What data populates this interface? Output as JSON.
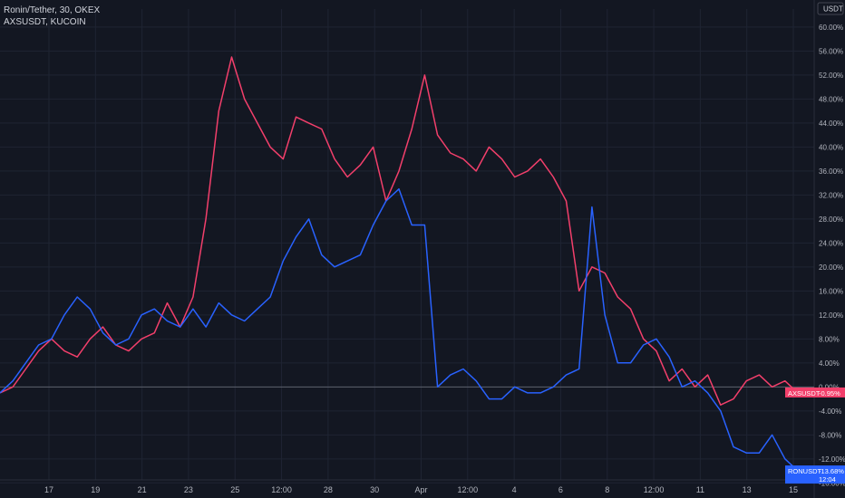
{
  "legend": {
    "main_symbol": "Ronin/Tether, 30, OKEX",
    "compare_symbol": "AXSUSDT, KUCOIN"
  },
  "axis": {
    "currency": "USDT"
  },
  "colors": {
    "background": "#131722",
    "grid": "#1f2433",
    "axis_text": "#b2b5be",
    "ronin": "#2962ff",
    "axs": "#f23f6b",
    "zero_line": "#787b86"
  },
  "chart_data": {
    "type": "line",
    "y_unit": "percent change",
    "ylim": [
      -15.5,
      63
    ],
    "y_ticks": [
      "60.00%",
      "56.00%",
      "52.00%",
      "48.00%",
      "44.00%",
      "40.00%",
      "36.00%",
      "32.00%",
      "28.00%",
      "24.00%",
      "20.00%",
      "16.00%",
      "12.00%",
      "8.00%",
      "4.00%",
      "0.00%",
      "-4.00%",
      "-8.00%",
      "-12.00%",
      "-16.00%"
    ],
    "x_ticks": [
      "17",
      "19",
      "21",
      "23",
      "25",
      "12:00",
      "28",
      "30",
      "Apr",
      "12:00",
      "4",
      "6",
      "8",
      "12:00",
      "11",
      "13",
      "15"
    ],
    "grid": true,
    "series": [
      {
        "name": "RONUSDT",
        "role": "main",
        "label_value": "-13.68%",
        "label_extra": "12:04",
        "x": [
          0,
          0.5,
          1,
          1.5,
          2,
          2.5,
          3,
          3.5,
          4,
          4.5,
          5,
          5.5,
          6,
          6.5,
          7,
          7.5,
          8,
          8.5,
          9,
          9.5,
          10,
          10.5,
          11,
          11.5,
          12,
          12.5,
          13,
          13.5,
          14,
          14.5,
          15,
          15.5,
          16,
          16.5,
          17,
          17.5,
          18,
          18.5,
          19,
          19.5,
          20,
          20.5,
          21,
          21.5,
          22,
          22.5,
          23,
          23.5,
          24,
          24.5,
          25,
          25.5,
          26,
          26.5,
          27,
          27.5,
          28,
          28.5,
          29,
          29.5,
          30,
          30.5,
          31
        ],
        "values": [
          -1,
          1,
          4,
          7,
          8,
          12,
          15,
          13,
          9,
          7,
          8,
          12,
          13,
          11,
          10,
          13,
          10,
          14,
          12,
          11,
          13,
          15,
          21,
          25,
          28,
          22,
          20,
          21,
          22,
          27,
          31,
          33,
          27,
          27,
          0,
          2,
          3,
          1,
          -2,
          -2,
          0,
          -1,
          -1,
          0,
          2,
          3,
          30,
          12,
          4,
          4,
          7,
          8,
          5,
          0,
          1,
          -1,
          -4,
          -10,
          -11,
          -11,
          -8,
          -12,
          -14
        ]
      },
      {
        "name": "AXSUSDT",
        "role": "compare",
        "label_value": "-0.95%",
        "x": [
          0,
          0.5,
          1,
          1.5,
          2,
          2.5,
          3,
          3.5,
          4,
          4.5,
          5,
          5.5,
          6,
          6.5,
          7,
          7.5,
          8,
          8.5,
          9,
          9.5,
          10,
          10.5,
          11,
          11.5,
          12,
          12.5,
          13,
          13.5,
          14,
          14.5,
          15,
          15.5,
          16,
          16.5,
          17,
          17.5,
          18,
          18.5,
          19,
          19.5,
          20,
          20.5,
          21,
          21.5,
          22,
          22.5,
          23,
          23.5,
          24,
          24.5,
          25,
          25.5,
          26,
          26.5,
          27,
          27.5,
          28,
          28.5,
          29,
          29.5,
          30,
          30.5,
          31
        ],
        "values": [
          -1,
          0,
          3,
          6,
          8,
          6,
          5,
          8,
          10,
          7,
          6,
          8,
          9,
          14,
          10,
          15,
          28,
          46,
          55,
          48,
          44,
          40,
          38,
          45,
          44,
          43,
          38,
          35,
          37,
          40,
          31,
          36,
          43,
          52,
          42,
          39,
          38,
          36,
          40,
          38,
          35,
          36,
          38,
          35,
          31,
          16,
          20,
          19,
          15,
          13,
          8,
          6,
          1,
          3,
          0,
          2,
          -3,
          -2,
          1,
          2,
          0,
          1,
          -1
        ]
      }
    ]
  }
}
